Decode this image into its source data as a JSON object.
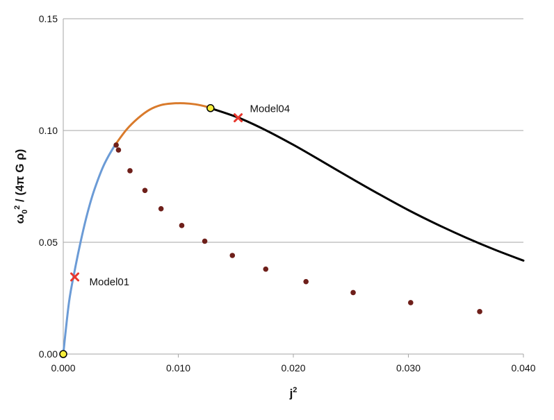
{
  "chart_data": {
    "type": "scatter",
    "title": "",
    "xlabel": "j",
    "xlabel_sup": "2",
    "ylabel_base": "ω",
    "ylabel_sub": "0",
    "ylabel_sup": "2",
    "ylabel_rest": " / (4π G ρ)",
    "xlim": [
      0.0,
      0.04
    ],
    "ylim": [
      0.0,
      0.15
    ],
    "x_ticks": [
      "0.000",
      "0.010",
      "0.020",
      "0.030",
      "0.040"
    ],
    "y_ticks": [
      "0.00",
      "0.05",
      "0.10",
      "0.15"
    ],
    "grid": "horizontal",
    "colors": {
      "blue_curve": "#6b9bd6",
      "orange_curve": "#d97a2b",
      "black_curve": "#000000",
      "dots": "#6e1f1a",
      "markers": "#e8382e",
      "highlight_fill": "#f6ee3c",
      "grid": "#a6a6a6"
    },
    "series": [
      {
        "style": "line",
        "color": "blue",
        "x": [
          0.0,
          0.0005,
          0.001,
          0.0015,
          0.002,
          0.0025,
          0.003,
          0.0035,
          0.004,
          0.0045
        ],
        "y": [
          0.0,
          0.0232,
          0.0375,
          0.05,
          0.061,
          0.0703,
          0.0778,
          0.0842,
          0.0892,
          0.0935
        ]
      },
      {
        "style": "line",
        "color": "orange",
        "x": [
          0.0045,
          0.0055,
          0.0065,
          0.0075,
          0.0085,
          0.0095,
          0.0105,
          0.0115,
          0.0125,
          0.0128
        ],
        "y": [
          0.0935,
          0.1004,
          0.1055,
          0.1093,
          0.1114,
          0.1121,
          0.1122,
          0.1117,
          0.1106,
          0.11
        ]
      },
      {
        "style": "line",
        "color": "black",
        "x": [
          0.0128,
          0.0152,
          0.0175,
          0.02,
          0.0225,
          0.025,
          0.0275,
          0.03,
          0.0325,
          0.035,
          0.0375,
          0.04
        ],
        "y": [
          0.11,
          0.1058,
          0.1004,
          0.0936,
          0.0862,
          0.0787,
          0.0714,
          0.0644,
          0.058,
          0.0521,
          0.0467,
          0.0418
        ]
      },
      {
        "style": "dots",
        "x": [
          0.0046,
          0.0048,
          0.0058,
          0.0071,
          0.0085,
          0.0103,
          0.0123,
          0.0147,
          0.0176,
          0.0211,
          0.0252,
          0.0302,
          0.0362
        ],
        "y": [
          0.0935,
          0.0913,
          0.082,
          0.0732,
          0.065,
          0.0575,
          0.0505,
          0.0441,
          0.038,
          0.0324,
          0.0275,
          0.023,
          0.019
        ]
      }
    ],
    "highlight_points": [
      {
        "x": 0.0,
        "y": 0.0
      },
      {
        "x": 0.0128,
        "y": 0.11
      }
    ],
    "annotations": [
      {
        "label": "Model01",
        "x": 0.001,
        "y": 0.0345
      },
      {
        "label": "Model04",
        "x": 0.0152,
        "y": 0.1057
      }
    ]
  }
}
